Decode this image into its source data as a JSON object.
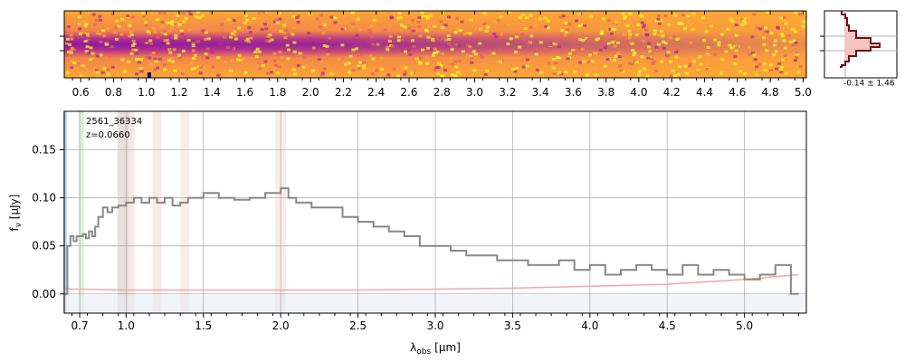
{
  "colors": {
    "spectrum": "#888888",
    "error": "#f4a6a6",
    "histogram_fill": "#f7c4c4",
    "histogram_line": "#6b1414",
    "grid": "#b0b0b0",
    "contam_band": "#b7d0e8",
    "line_green": "#9fd4a2",
    "line_red": "#f3c0c0",
    "heatmap": [
      "#0d0887",
      "#6a00a8",
      "#b12a90",
      "#e16462",
      "#fca636",
      "#f0f921"
    ]
  },
  "chart_data": [
    {
      "type": "heatmap",
      "title": "",
      "description_values": "2D spectrum cutout (plasma colormap)",
      "xlabel": "",
      "x_ticks": [
        "0.6",
        "0.8",
        "1.0",
        "1.2",
        "1.4",
        "1.6",
        "1.8",
        "2.0",
        "2.2",
        "2.4",
        "2.6",
        "2.8",
        "3.0",
        "3.2",
        "3.4",
        "3.6",
        "3.8",
        "4.0",
        "4.2",
        "4.4",
        "4.6",
        "4.8",
        "5.0"
      ],
      "x_tick_values": [
        0.6,
        0.8,
        1.0,
        1.2,
        1.4,
        1.6,
        1.8,
        2.0,
        2.2,
        2.4,
        2.6,
        2.8,
        3.0,
        3.2,
        3.4,
        3.6,
        3.8,
        4.0,
        4.2,
        4.4,
        4.6,
        4.8,
        5.0
      ],
      "xlim": [
        0.5,
        5.02
      ]
    },
    {
      "type": "histogram",
      "annotation": "-0.14 ± 1.46"
    },
    {
      "type": "line",
      "xlabel_main": "λ",
      "xlabel_sub": "obs",
      "xlabel_unit": "[μm]",
      "ylabel_main": "f",
      "ylabel_sub": "ν",
      "ylabel_unit": "[μJy]",
      "object_id": "2561_36334",
      "redshift": "z=0.0660",
      "x_ticks": [
        "0.7",
        "1.0",
        "1.5",
        "2.0",
        "2.5",
        "3.0",
        "3.5",
        "4.0",
        "4.5",
        "5.0"
      ],
      "x_tick_values": [
        0.7,
        1.0,
        1.5,
        2.0,
        2.5,
        3.0,
        3.5,
        4.0,
        4.5,
        5.0
      ],
      "y_ticks": [
        "0.00",
        "0.05",
        "0.10",
        "0.15"
      ],
      "y_tick_values": [
        0.0,
        0.05,
        0.1,
        0.15
      ],
      "ylim": [
        -0.02,
        0.19
      ],
      "xlim": [
        0.6,
        5.4
      ],
      "grid": true,
      "series": [
        {
          "name": "",
          "x": [
            0.6,
            0.62,
            0.64,
            0.66,
            0.68,
            0.7,
            0.72,
            0.74,
            0.76,
            0.78,
            0.8,
            0.82,
            0.85,
            0.88,
            0.91,
            0.95,
            1.0,
            1.05,
            1.1,
            1.15,
            1.2,
            1.25,
            1.3,
            1.35,
            1.4,
            1.5,
            1.6,
            1.7,
            1.8,
            1.9,
            2.0,
            2.05,
            2.1,
            2.2,
            2.3,
            2.4,
            2.5,
            2.6,
            2.7,
            2.8,
            2.9,
            3.0,
            3.1,
            3.2,
            3.3,
            3.4,
            3.5,
            3.6,
            3.7,
            3.8,
            3.9,
            4.0,
            4.1,
            4.2,
            4.3,
            4.4,
            4.5,
            4.6,
            4.7,
            4.8,
            4.9,
            5.0,
            5.1,
            5.2,
            5.3,
            5.35
          ],
          "y": [
            0.0,
            0.05,
            0.06,
            0.055,
            0.06,
            0.06,
            0.062,
            0.058,
            0.065,
            0.06,
            0.07,
            0.08,
            0.09,
            0.085,
            0.09,
            0.092,
            0.095,
            0.1,
            0.095,
            0.1,
            0.095,
            0.1,
            0.092,
            0.095,
            0.1,
            0.105,
            0.1,
            0.098,
            0.1,
            0.105,
            0.11,
            0.1,
            0.095,
            0.09,
            0.09,
            0.08,
            0.075,
            0.07,
            0.065,
            0.06,
            0.05,
            0.05,
            0.045,
            0.04,
            0.04,
            0.035,
            0.035,
            0.03,
            0.03,
            0.035,
            0.025,
            0.03,
            0.02,
            0.025,
            0.03,
            0.025,
            0.02,
            0.03,
            0.02,
            0.025,
            0.02,
            0.015,
            0.02,
            0.03,
            0.0,
            0.0
          ]
        },
        {
          "name": "",
          "x": [
            0.6,
            0.65,
            0.7,
            1.0,
            1.5,
            2.0,
            2.5,
            3.0,
            3.5,
            4.0,
            4.5,
            5.0,
            5.35
          ],
          "y": [
            0.006,
            0.005,
            0.005,
            0.004,
            0.004,
            0.004,
            0.004,
            0.005,
            0.006,
            0.008,
            0.01,
            0.015,
            0.02
          ]
        }
      ]
    }
  ]
}
